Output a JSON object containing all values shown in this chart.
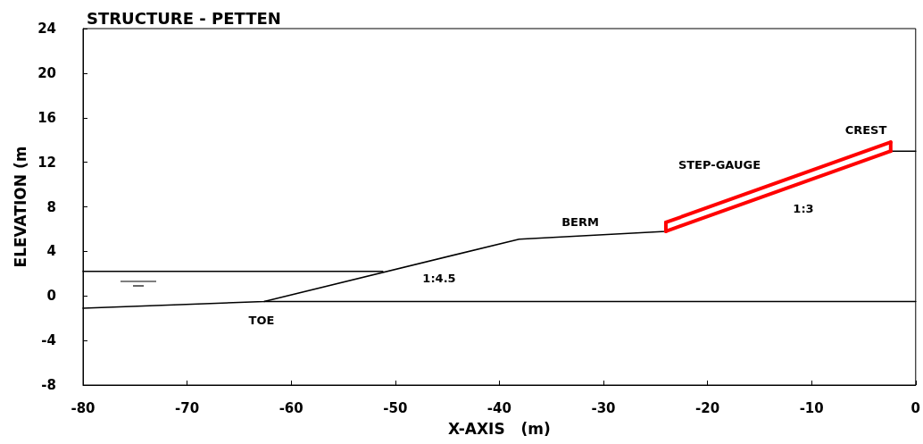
{
  "chart_data": {
    "type": "line",
    "title": "STRUCTURE - PETTEN",
    "xlabel": "X-AXIS   (m)",
    "ylabel": "ELEVATION (m",
    "xlim": [
      -80,
      0
    ],
    "ylim": [
      -8,
      24
    ],
    "xticks": [
      -80,
      -70,
      -60,
      -50,
      -40,
      -30,
      -20,
      -10,
      0
    ],
    "yticks": [
      -8,
      -4,
      0,
      4,
      8,
      12,
      16,
      20,
      24
    ],
    "grid": false,
    "legend": false,
    "marker": "none",
    "line_style": "solid",
    "series": [
      {
        "color": "#000000",
        "x": [
          -80,
          -62.6,
          -38.1,
          -24,
          -2.4,
          0
        ],
        "values": [
          -1.1,
          -0.5,
          5.1,
          5.8,
          13.0,
          13.0
        ]
      },
      {
        "color": "#000000",
        "x": [
          -80,
          -51.2
        ],
        "values": [
          2.2,
          2.2
        ]
      },
      {
        "color": "#000000",
        "x": [
          -62.6,
          0
        ],
        "values": [
          -0.5,
          -0.5
        ]
      },
      {
        "color": "#ff0000",
        "x": [
          -24,
          -2.4
        ],
        "values": [
          5.8,
          13.0
        ]
      },
      {
        "color": "#ff0000",
        "x": [
          -24,
          -2.4
        ],
        "values": [
          6.6,
          13.8
        ]
      },
      {
        "color": "#ff0000",
        "x": [
          -24,
          -24
        ],
        "values": [
          5.8,
          6.6
        ]
      },
      {
        "color": "#ff0000",
        "x": [
          -2.4,
          -2.4
        ],
        "values": [
          13.0,
          13.8
        ]
      }
    ],
    "annotations": [
      "TOE",
      "1:4.5",
      "BERM",
      "STEP-GAUGE",
      "1:3",
      "CREST"
    ]
  }
}
